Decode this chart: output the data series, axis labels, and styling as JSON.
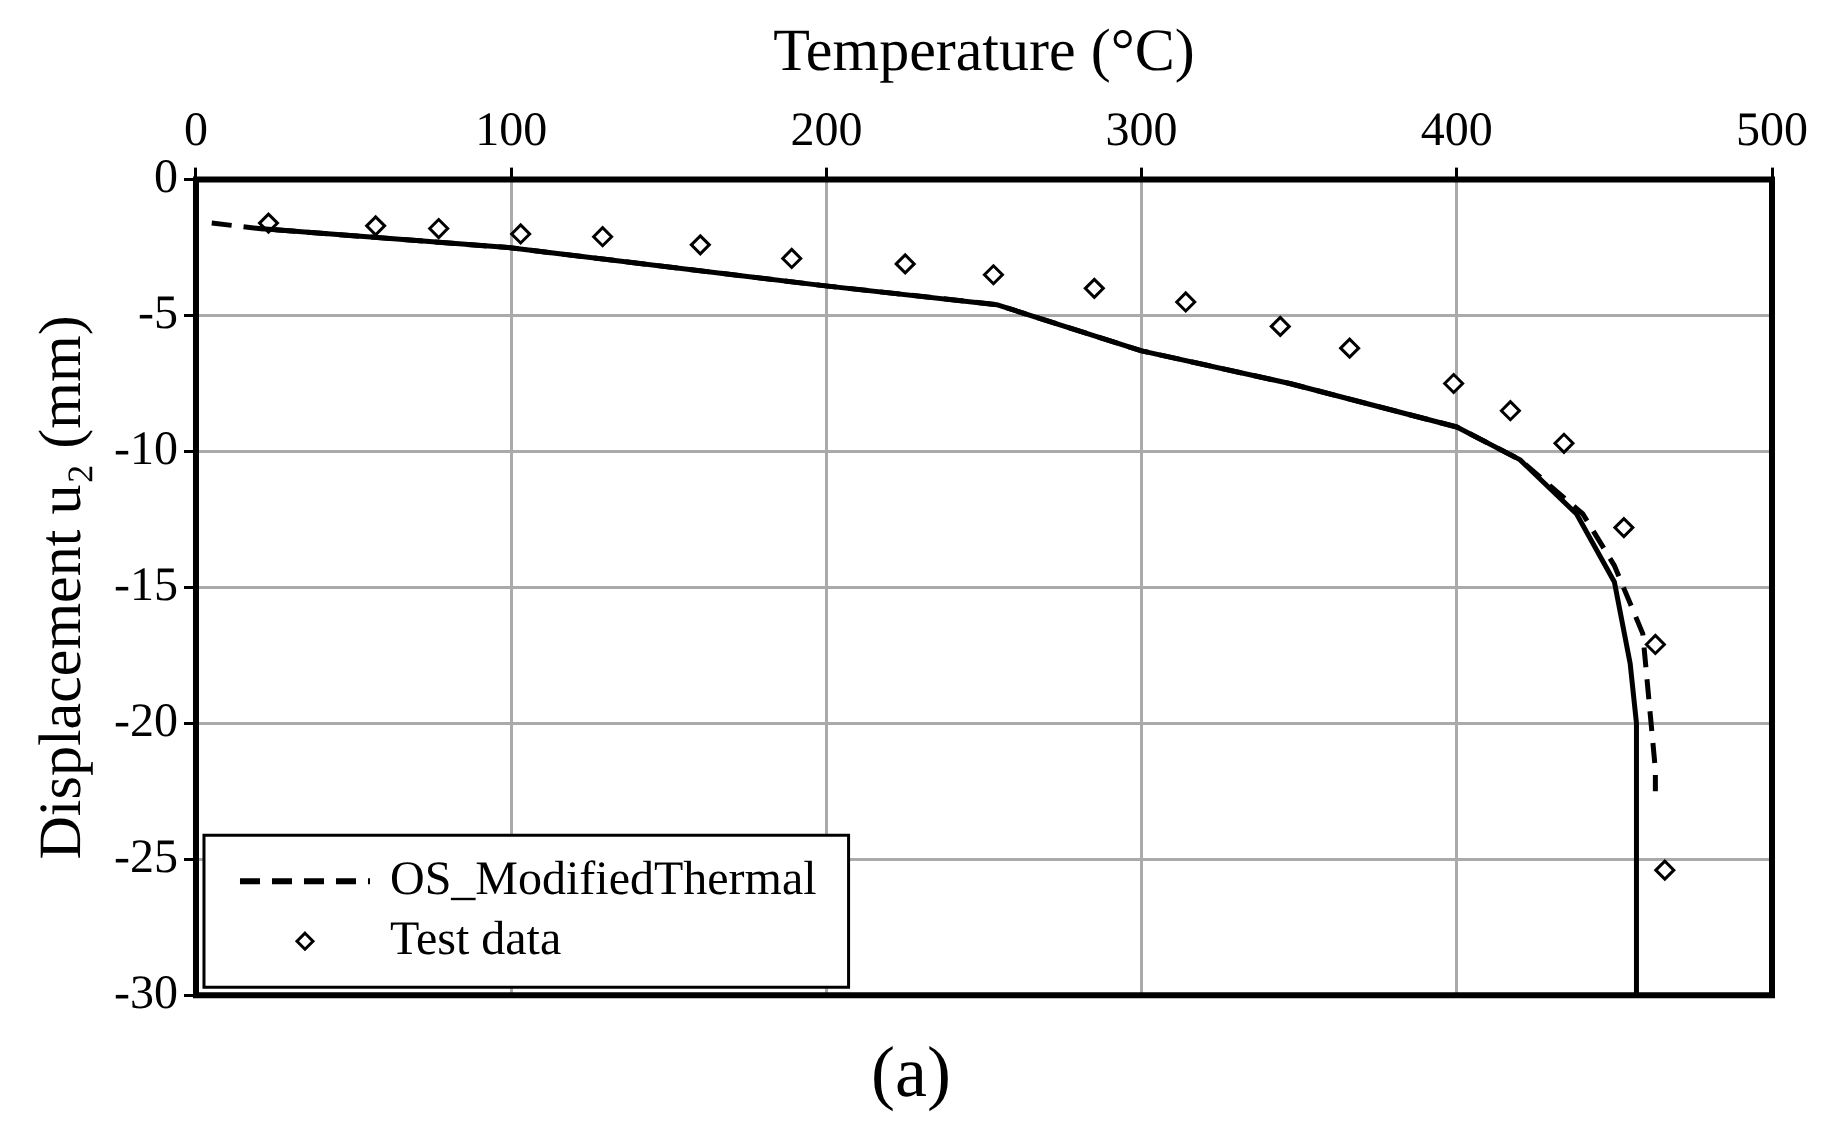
{
  "chart_data": {
    "type": "line",
    "xlabel": "Temperature (°C)",
    "ylabel": "Displacement u₂ (mm)",
    "xlim": [
      0,
      500
    ],
    "xticks": [
      0,
      100,
      200,
      300,
      400,
      500
    ],
    "ylim": [
      -30,
      0
    ],
    "yticks": [
      0,
      -5,
      -10,
      -15,
      -20,
      -25,
      -30
    ],
    "grid": true,
    "legend": "bottom left",
    "annotations": [
      "(a)"
    ],
    "series": [
      {
        "name": "OS_ModifiedThermal",
        "color": "#000000",
        "line_style": "dashed",
        "marker": "none",
        "x": [
          5,
          20,
          99,
          199,
          254,
          300,
          347,
          400,
          420,
          440,
          450,
          459,
          461,
          463,
          463
        ],
        "values": [
          -1.6,
          -1.8,
          -2.5,
          -3.9,
          -4.6,
          -6.3,
          -7.5,
          -9.1,
          -10.3,
          -12.3,
          -14.2,
          -16.7,
          -19.2,
          -21.7,
          -22.5
        ]
      },
      {
        "color": "#000000",
        "line_style": "solid",
        "marker": "none",
        "x": [
          20,
          99,
          199,
          254,
          300,
          347,
          400,
          420,
          438,
          450,
          455,
          457,
          457
        ],
        "values": [
          -1.8,
          -2.5,
          -3.9,
          -4.6,
          -6.3,
          -7.5,
          -9.1,
          -10.3,
          -12.3,
          -14.8,
          -17.8,
          -20,
          -30
        ]
      },
      {
        "name": "Test data",
        "type": "scatter",
        "color": "#000000",
        "marker": "diamond",
        "x": [
          23,
          57,
          77,
          103,
          129,
          160,
          189,
          225,
          253,
          285,
          314,
          344,
          366,
          399,
          417,
          434,
          453,
          463,
          466
        ],
        "values": [
          -1.6,
          -1.7,
          -1.8,
          -2,
          -2.1,
          -2.4,
          -2.9,
          -3.1,
          -3.5,
          -4,
          -4.5,
          -5.4,
          -6.2,
          -7.5,
          -8.5,
          -9.7,
          -12.8,
          -17.1,
          -25.4
        ]
      }
    ]
  }
}
